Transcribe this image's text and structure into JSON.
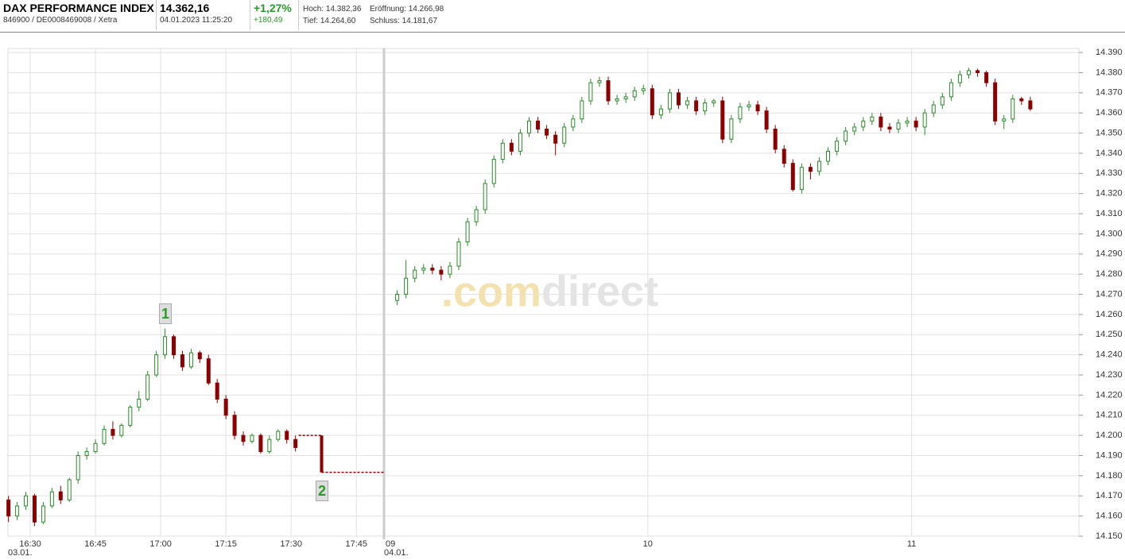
{
  "header": {
    "name": "DAX PERFORMANCE INDEX",
    "ids": "846900 / DE0008469008 / Xetra",
    "price": "14.362,16",
    "timestamp": "04.01.2023 11:25:20",
    "change_pct": "+1,27%",
    "change_abs": "+180,49",
    "high": "Hoch: 14.382,36",
    "open": "Eröffnung: 14.266,98",
    "low": "Tief: 14.264,60",
    "close": "Schluss: 14.181,67"
  },
  "chart_data": {
    "type": "candlestick",
    "up_color": "#2a8a2a",
    "down_color": "#8b0000",
    "grid": true,
    "ylim": [
      14150,
      14392
    ],
    "yticks": [
      {
        "value": 14150,
        "label": "14.150"
      },
      {
        "value": 14160,
        "label": "14.160"
      },
      {
        "value": 14170,
        "label": "14.170"
      },
      {
        "value": 14180,
        "label": "14.180"
      },
      {
        "value": 14190,
        "label": "14.190"
      },
      {
        "value": 14200,
        "label": "14.200"
      },
      {
        "value": 14210,
        "label": "14.210"
      },
      {
        "value": 14220,
        "label": "14.220"
      },
      {
        "value": 14230,
        "label": "14.230"
      },
      {
        "value": 14240,
        "label": "14.240"
      },
      {
        "value": 14250,
        "label": "14.250"
      },
      {
        "value": 14260,
        "label": "14.260"
      },
      {
        "value": 14270,
        "label": "14.270"
      },
      {
        "value": 14280,
        "label": "14.280"
      },
      {
        "value": 14290,
        "label": "14.290"
      },
      {
        "value": 14300,
        "label": "14.300"
      },
      {
        "value": 14310,
        "label": "14.310"
      },
      {
        "value": 14320,
        "label": "14.320"
      },
      {
        "value": 14330,
        "label": "14.330"
      },
      {
        "value": 14340,
        "label": "14.340"
      },
      {
        "value": 14350,
        "label": "14.350"
      },
      {
        "value": 14360,
        "label": "14.360"
      },
      {
        "value": 14370,
        "label": "14.370"
      },
      {
        "value": 14380,
        "label": "14.380"
      },
      {
        "value": 14390,
        "label": "14.390"
      }
    ],
    "xticks": [
      "16:30",
      "16:45",
      "17:00",
      "17:15",
      "17:30",
      "17:45",
      {
        "value": "09:00",
        "label": "09"
      },
      {
        "value": "10:00",
        "label": "10"
      },
      {
        "value": "11:00",
        "label": "11"
      }
    ],
    "date_labels": [
      "03.01.",
      "04.01."
    ],
    "annotations": [
      "1",
      "2"
    ],
    "closing_auction": {
      "time": "17:37",
      "open": 14200,
      "close": 14181.67
    },
    "x": [
      "16:25",
      "16:27",
      "16:29",
      "16:31",
      "16:33",
      "16:35",
      "16:37",
      "16:39",
      "16:41",
      "16:43",
      "16:45",
      "16:47",
      "16:49",
      "16:51",
      "16:53",
      "16:55",
      "16:57",
      "16:59",
      "17:01",
      "17:03",
      "17:05",
      "17:07",
      "17:09",
      "17:11",
      "17:13",
      "17:15",
      "17:17",
      "17:19",
      "17:21",
      "17:23",
      "17:25",
      "17:27",
      "17:29",
      "17:31",
      "09:03",
      "09:05",
      "09:07",
      "09:09",
      "09:11",
      "09:13",
      "09:15",
      "09:17",
      "09:19",
      "09:21",
      "09:23",
      "09:25",
      "09:27",
      "09:29",
      "09:31",
      "09:33",
      "09:35",
      "09:37",
      "09:39",
      "09:41",
      "09:43",
      "09:45",
      "09:47",
      "09:49",
      "09:51",
      "09:53",
      "09:55",
      "09:57",
      "09:59",
      "10:01",
      "10:03",
      "10:05",
      "10:07",
      "10:09",
      "10:11",
      "10:13",
      "10:15",
      "10:17",
      "10:19",
      "10:21",
      "10:23",
      "10:25",
      "10:27",
      "10:29",
      "10:31",
      "10:33",
      "10:35",
      "10:37",
      "10:39",
      "10:41",
      "10:43",
      "10:45",
      "10:47",
      "10:49",
      "10:51",
      "10:53",
      "10:55",
      "10:57",
      "10:59",
      "11:01",
      "11:03",
      "11:05",
      "11:07",
      "11:09",
      "11:11",
      "11:13",
      "11:15",
      "11:17",
      "11:19",
      "11:21",
      "11:23",
      "11:25",
      "11:27"
    ],
    "open": [
      14168,
      14160,
      14165,
      14170,
      14157,
      14165,
      14172,
      14168,
      14178,
      14190,
      14192,
      14196,
      14203,
      14200,
      14205,
      14214,
      14218,
      14230,
      14240,
      14249,
      14240,
      14234,
      14241,
      14238,
      14226,
      14218,
      14210,
      14200,
      14197,
      14200,
      14192,
      14198,
      14202,
      14198,
      14267,
      14270,
      14278,
      14282,
      14283,
      14282,
      14280,
      14284,
      14296,
      14306,
      14312,
      14325,
      14337,
      14345,
      14341,
      14350,
      14356,
      14352,
      14349,
      14345,
      14353,
      14357,
      14366,
      14375,
      14376,
      14366,
      14367,
      14368,
      14371,
      14372,
      14359,
      14362,
      14370,
      14364,
      14366,
      14361,
      14365,
      14366,
      14347,
      14357,
      14363,
      14364,
      14361,
      14352,
      14342,
      14335,
      14322,
      14333,
      14331,
      14336,
      14341,
      14346,
      14351,
      14353,
      14356,
      14358,
      14353,
      14352,
      14355,
      14356,
      14353,
      14360,
      14364,
      14368,
      14375,
      14379,
      14381,
      14380,
      14375,
      14356,
      14357,
      14367,
      14366
    ],
    "high": [
      14170,
      14167,
      14172,
      14171,
      14167,
      14174,
      14175,
      14179,
      14192,
      14194,
      14198,
      14205,
      14207,
      14206,
      14215,
      14222,
      14232,
      14242,
      14253,
      14250,
      14242,
      14243,
      14242,
      14240,
      14228,
      14220,
      14212,
      14202,
      14201,
      14201,
      14200,
      14203,
      14203,
      14200,
      14272,
      14287,
      14284,
      14285,
      14285,
      14284,
      14286,
      14298,
      14308,
      14314,
      14327,
      14339,
      14347,
      14347,
      14352,
      14358,
      14358,
      14354,
      14351,
      14355,
      14359,
      14368,
      14377,
      14378,
      14378,
      14369,
      14370,
      14373,
      14374,
      14374,
      14364,
      14372,
      14372,
      14368,
      14368,
      14367,
      14367,
      14368,
      14359,
      14365,
      14366,
      14366,
      14363,
      14354,
      14344,
      14337,
      14335,
      14335,
      14338,
      14343,
      14348,
      14353,
      14355,
      14358,
      14360,
      14360,
      14355,
      14357,
      14358,
      14358,
      14362,
      14366,
      14370,
      14377,
      14381,
      14382.36,
      14382,
      14381,
      14377,
      14359,
      14369,
      14368,
      14368
    ],
    "low": [
      14157,
      14158,
      14163,
      14155,
      14156,
      14164,
      14166,
      14167,
      14176,
      14188,
      14191,
      14195,
      14198,
      14199,
      14204,
      14212,
      14217,
      14229,
      14238,
      14238,
      14232,
      14233,
      14236,
      14225,
      14216,
      14208,
      14198,
      14195,
      14196,
      14191,
      14191,
      14197,
      14196,
      14192,
      14264.6,
      14268,
      14276,
      14280,
      14280,
      14277,
      14278,
      14282,
      14294,
      14304,
      14310,
      14323,
      14335,
      14339,
      14339,
      14348,
      14350,
      14347,
      14339,
      14343,
      14351,
      14355,
      14364,
      14373,
      14364,
      14364,
      14365,
      14366,
      14369,
      14357,
      14357,
      14360,
      14362,
      14362,
      14359,
      14359,
      14363,
      14345,
      14345,
      14355,
      14361,
      14359,
      14350,
      14340,
      14333,
      14321,
      14320,
      14327,
      14329,
      14334,
      14339,
      14344,
      14349,
      14351,
      14354,
      14351,
      14350,
      14350,
      14353,
      14351,
      14349,
      14358,
      14362,
      14366,
      14373,
      14377,
      14378,
      14373,
      14354,
      14352,
      14355,
      14364,
      14361
    ],
    "close": [
      14160,
      14165,
      14170,
      14157,
      14165,
      14172,
      14168,
      14178,
      14190,
      14192,
      14196,
      14203,
      14200,
      14205,
      14214,
      14218,
      14230,
      14240,
      14249,
      14240,
      14234,
      14241,
      14238,
      14226,
      14218,
      14210,
      14200,
      14197,
      14200,
      14192,
      14198,
      14202,
      14198,
      14194,
      14270,
      14278,
      14282,
      14283,
      14282,
      14280,
      14284,
      14296,
      14306,
      14312,
      14325,
      14337,
      14345,
      14341,
      14350,
      14356,
      14352,
      14349,
      14345,
      14353,
      14357,
      14366,
      14375,
      14376,
      14366,
      14367,
      14368,
      14371,
      14372,
      14359,
      14362,
      14370,
      14364,
      14366,
      14361,
      14365,
      14366,
      14347,
      14357,
      14363,
      14364,
      14361,
      14352,
      14342,
      14335,
      14322,
      14333,
      14331,
      14336,
      14341,
      14346,
      14351,
      14353,
      14356,
      14358,
      14353,
      14352,
      14355,
      14356,
      14353,
      14360,
      14364,
      14368,
      14375,
      14379,
      14381,
      14380,
      14375,
      14356,
      14357,
      14367,
      14366,
      14362
    ]
  }
}
